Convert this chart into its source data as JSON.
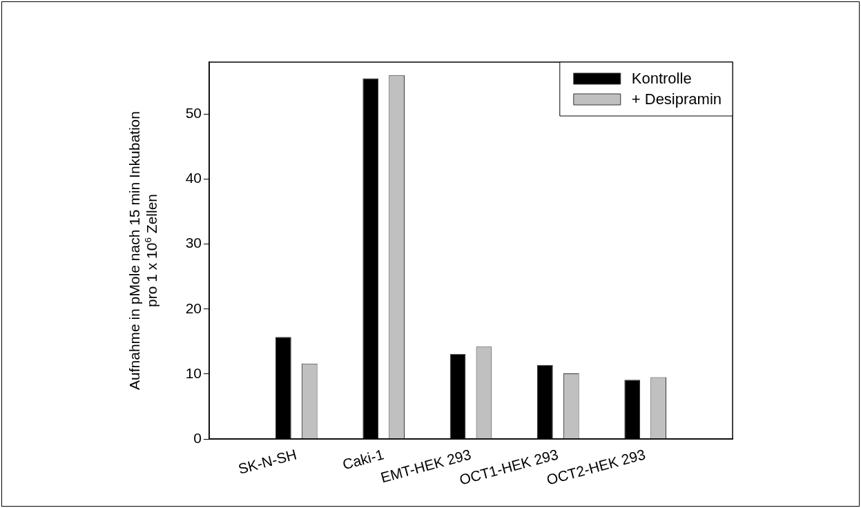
{
  "chart_data": {
    "type": "bar",
    "ylabel": "Aufnahme in pMole nach 15 min Inkubation\npro 1 x 10$^{6}$ Zellen",
    "categories": [
      "SK-N-SH",
      "Caki-1",
      "EMT-HEK 293",
      "OCT1-HEK 293",
      "OCT2-HEK 293"
    ],
    "series": [
      {
        "name": "Kontrolle",
        "color": "#000000",
        "values": [
          15.7,
          55.5,
          13.1,
          11.4,
          9.1
        ]
      },
      {
        "name": "+ Desipramin",
        "color": "#c0c0c0",
        "values": [
          11.6,
          56.0,
          14.2,
          10.1,
          9.5
        ]
      }
    ],
    "ylim": [
      0,
      58
    ],
    "yticks": [
      0,
      10,
      20,
      30,
      40,
      50
    ],
    "grid": false,
    "legend": "top right"
  }
}
